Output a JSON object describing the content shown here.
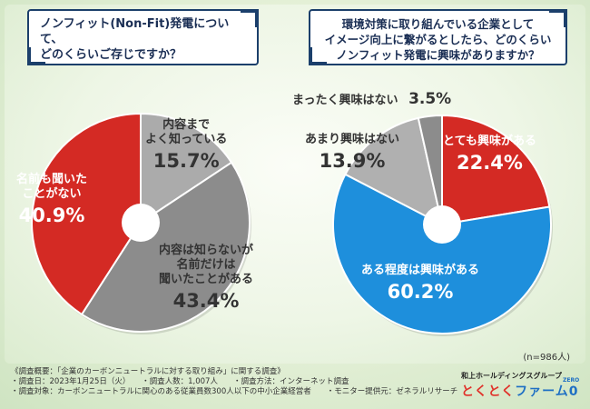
{
  "question_left": [
    "ノンフィット(Non-Fit)発電について、",
    "どのくらいご存じですか？"
  ],
  "question_right": [
    "環境対策に取り組んでいる企業として",
    "イメージ向上に繋がるとしたら、どのくらい",
    "ノンフィット発電に興味がありますか？"
  ],
  "chart_data": [
    {
      "type": "pie",
      "title": "ノンフィット(Non-Fit)発電について、どのくらいご存じですか？",
      "categories": [
        "内容までよく知っている",
        "内容は知らないが名前だけは聞いたことがある",
        "名前も聞いたことがない"
      ],
      "values": [
        15.7,
        43.4,
        40.9
      ],
      "unit": "%",
      "colors": [
        "#ababab",
        "#8c8c8c",
        "#d42a24"
      ],
      "label_lines": [
        [
          "内容まで",
          "よく知っている"
        ],
        [
          "内容は知らないが",
          "名前だけは",
          "聞いたことがある"
        ],
        [
          "名前も聞いた",
          "ことがない"
        ]
      ],
      "value_labels": [
        "15.7%",
        "43.4%",
        "40.9%"
      ]
    },
    {
      "type": "pie",
      "title": "環境対策に取り組んでいる企業としてイメージ向上に繋がるとしたら、どのくらいノンフィット発電に興味がありますか？",
      "categories": [
        "とても興味がある",
        "ある程度は興味がある",
        "あまり興味はない",
        "まったく興味はない"
      ],
      "values": [
        22.4,
        60.2,
        13.9,
        3.5
      ],
      "unit": "%",
      "colors": [
        "#d42a24",
        "#1e8fdc",
        "#b0b0b0",
        "#8c8c8c"
      ],
      "label_lines": [
        [
          "とても興味がある"
        ],
        [
          "ある程度は興味がある"
        ],
        [
          "あまり興味はない"
        ],
        [
          "まったく興味はない"
        ]
      ],
      "value_labels": [
        "22.4%",
        "60.2%",
        "13.9%",
        "3.5%"
      ]
    }
  ],
  "sample_note": "(n=986人)",
  "footer_lines": [
    "《調査概要：「企業のカーボンニュートラルに対する取り組み」に関する調査》",
    "・調査日：2023年1月25日（火）　　・調査人数：1,007人　　・調査方法：インターネット調査",
    "・調査対象：カーボンニュートラルに関心のある従業員数300人以下の中小企業経営者　　・モニター提供元：ゼネラルリサーチ"
  ],
  "logo": {
    "group": "和上ホールディングスグループ",
    "brand_a": "とくとく",
    "brand_b": "ファーム",
    "zero": "ZERO",
    "zero_mark": "0"
  }
}
